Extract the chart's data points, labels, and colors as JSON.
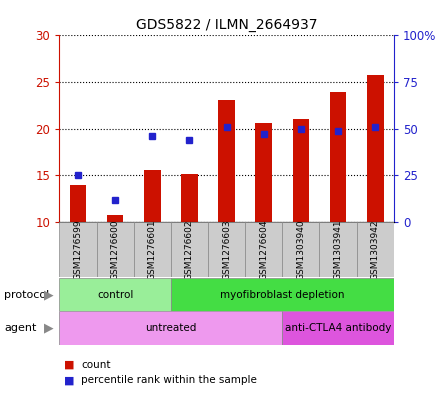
{
  "title": "GDS5822 / ILMN_2664937",
  "samples": [
    "GSM1276599",
    "GSM1276600",
    "GSM1276601",
    "GSM1276602",
    "GSM1276603",
    "GSM1276604",
    "GSM1303940",
    "GSM1303941",
    "GSM1303942"
  ],
  "counts": [
    14.0,
    10.8,
    15.6,
    15.2,
    23.1,
    20.6,
    21.0,
    23.9,
    25.8
  ],
  "percentiles": [
    25,
    12,
    46,
    44,
    51,
    47,
    50,
    49,
    51
  ],
  "ylim_left": [
    10,
    30
  ],
  "ylim_right": [
    0,
    100
  ],
  "yticks_left": [
    10,
    15,
    20,
    25,
    30
  ],
  "yticks_right": [
    0,
    25,
    50,
    75,
    100
  ],
  "ytick_labels_left": [
    "10",
    "15",
    "20",
    "25",
    "30"
  ],
  "ytick_labels_right": [
    "0",
    "25",
    "50",
    "75",
    "100%"
  ],
  "bar_color": "#cc1100",
  "dot_color": "#2222cc",
  "bar_bottom": 10,
  "bar_width": 0.45,
  "protocol_groups": [
    {
      "label": "control",
      "start": 0,
      "end": 3,
      "color": "#99ee99"
    },
    {
      "label": "myofibroblast depletion",
      "start": 3,
      "end": 9,
      "color": "#44dd44"
    }
  ],
  "agent_groups": [
    {
      "label": "untreated",
      "start": 0,
      "end": 6,
      "color": "#ee99ee"
    },
    {
      "label": "anti-CTLA4 antibody",
      "start": 6,
      "end": 9,
      "color": "#dd55dd"
    }
  ],
  "legend_count_label": "count",
  "legend_pct_label": "percentile rank within the sample",
  "axis_left_color": "#cc1100",
  "axis_right_color": "#2222cc",
  "sample_box_color": "#cccccc",
  "plot_bg": "#ffffff",
  "fig_bg": "#ffffff"
}
